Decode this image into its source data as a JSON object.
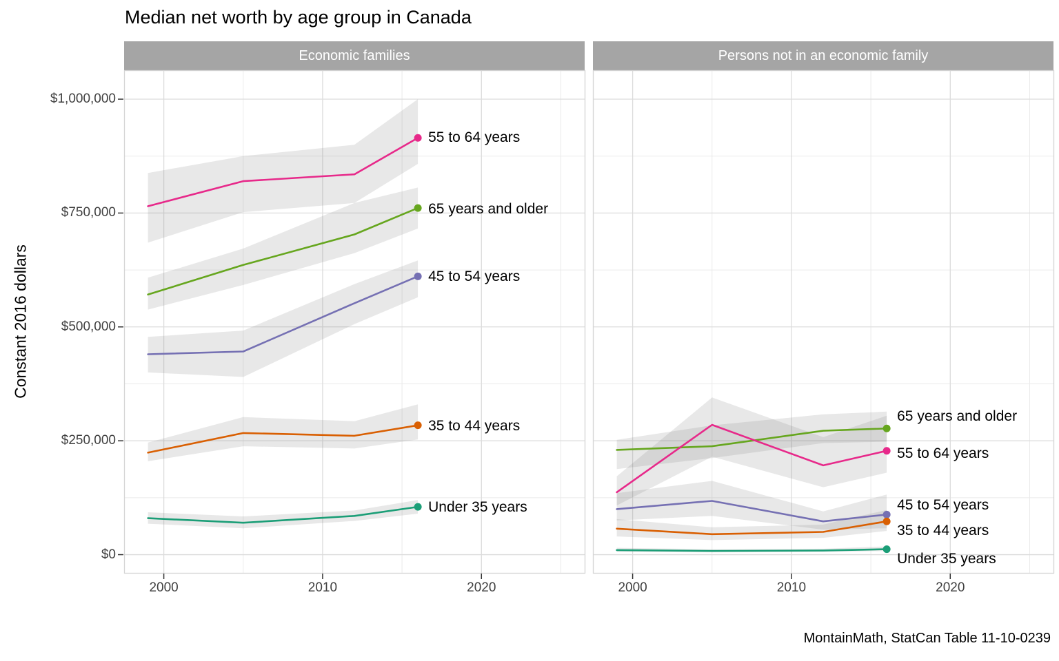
{
  "title": "Median net worth by age group in Canada",
  "caption": "MontainMath, StatCan Table 11-10-0239",
  "y_axis": {
    "title": "Constant 2016 dollars",
    "tick_labels": [
      "$0",
      "$250,000",
      "$500,000",
      "$750,000",
      "$1,000,000"
    ],
    "tick_values": [
      0,
      250000,
      500000,
      750000,
      1000000
    ]
  },
  "x_axis": {
    "tick_labels": [
      "2000",
      "2010",
      "2020"
    ],
    "tick_values": [
      2000,
      2010,
      2020
    ]
  },
  "colors": {
    "under_35": "#1B9E77",
    "35_to_44": "#D95F02",
    "45_to_54": "#7570B3",
    "55_to_64": "#E7298A",
    "65_and_older": "#66A61E",
    "ribbon": "rgba(120,120,120,0.17)",
    "strip_bg": "#a5a5a5",
    "grid_major": "#dcdcdc",
    "grid_minor": "#eaeaea",
    "panel_border": "#d4d4d4",
    "tick_mark": "#333333"
  },
  "chart_data": {
    "type": "line",
    "x": [
      1999,
      2005,
      2012,
      2016
    ],
    "xlim": [
      1997.5,
      2026.5
    ],
    "ylim": [
      -40000,
      1062000
    ],
    "minor_x": [
      2005,
      2015,
      2025
    ],
    "minor_y": [
      125000,
      375000,
      625000,
      875000
    ],
    "grid": true,
    "legend": "direct-labels-right-of-last-point",
    "facets": [
      {
        "label": "Economic families",
        "series": [
          {
            "name": "55 to 64 years",
            "color": "#E7298A",
            "label_dy": 0,
            "values": [
              765000,
              820000,
              835000,
              915000
            ],
            "ribbon_lo": [
              685000,
              752000,
              772000,
              858000
            ],
            "ribbon_hi": [
              838000,
              875000,
              900000,
              1000000
            ]
          },
          {
            "name": "65 years and older",
            "color": "#66A61E",
            "label_dy": 2,
            "values": [
              571000,
              636000,
              703000,
              761000
            ],
            "ribbon_lo": [
              538000,
              592000,
              662000,
              716000
            ],
            "ribbon_hi": [
              608000,
              672000,
              772000,
              806000
            ]
          },
          {
            "name": "45 to 54 years",
            "color": "#7570B3",
            "label_dy": 1,
            "values": [
              440000,
              446000,
              552000,
              611000
            ],
            "ribbon_lo": [
              400000,
              390000,
              506000,
              565000
            ],
            "ribbon_hi": [
              478000,
              492000,
              594000,
              646000
            ]
          },
          {
            "name": "35 to 44 years",
            "color": "#D95F02",
            "label_dy": 1,
            "values": [
              224000,
              267000,
              261000,
              284000
            ],
            "ribbon_lo": [
              205000,
              238000,
              233000,
              253000
            ],
            "ribbon_hi": [
              246000,
              302000,
              293000,
              330000
            ]
          },
          {
            "name": "Under 35 years",
            "color": "#1B9E77",
            "label_dy": 1,
            "values": [
              80000,
              70000,
              85000,
              105000
            ],
            "ribbon_lo": [
              68000,
              58000,
              74000,
              90000
            ],
            "ribbon_hi": [
              93000,
              84000,
              97000,
              120000
            ]
          }
        ]
      },
      {
        "label": "Persons not in an economic family",
        "series": [
          {
            "name": "65 years and older",
            "color": "#66A61E",
            "label_dy": -17,
            "values": [
              230000,
              238000,
              272000,
              277000
            ],
            "ribbon_lo": [
              188000,
              212000,
              245000,
              248000
            ],
            "ribbon_hi": [
              252000,
              284000,
              308000,
              314000
            ]
          },
          {
            "name": "55 to 64 years",
            "color": "#E7298A",
            "label_dy": 4,
            "values": [
              137000,
              285000,
              196000,
              228000
            ],
            "ribbon_lo": [
              108000,
              215000,
              148000,
              180000
            ],
            "ribbon_hi": [
              172000,
              345000,
              258000,
              305000
            ]
          },
          {
            "name": "45 to 54 years",
            "color": "#7570B3",
            "label_dy": -13,
            "values": [
              100000,
              118000,
              73000,
              88000
            ],
            "ribbon_lo": [
              75000,
              85000,
              55000,
              58000
            ],
            "ribbon_hi": [
              135000,
              162000,
              95000,
              132000
            ]
          },
          {
            "name": "35 to 44 years",
            "color": "#D95F02",
            "label_dy": 14,
            "values": [
              57000,
              45000,
              50000,
              73000
            ],
            "ribbon_lo": [
              40000,
              32000,
              37000,
              52000
            ],
            "ribbon_hi": [
              78000,
              60000,
              66000,
              98000
            ]
          },
          {
            "name": "Under 35 years",
            "color": "#1B9E77",
            "label_dy": 14,
            "values": [
              10000,
              8000,
              9000,
              12000
            ],
            "ribbon_lo": [
              6000,
              5000,
              6000,
              8000
            ],
            "ribbon_hi": [
              15000,
              12000,
              13000,
              18000
            ]
          }
        ]
      }
    ]
  }
}
